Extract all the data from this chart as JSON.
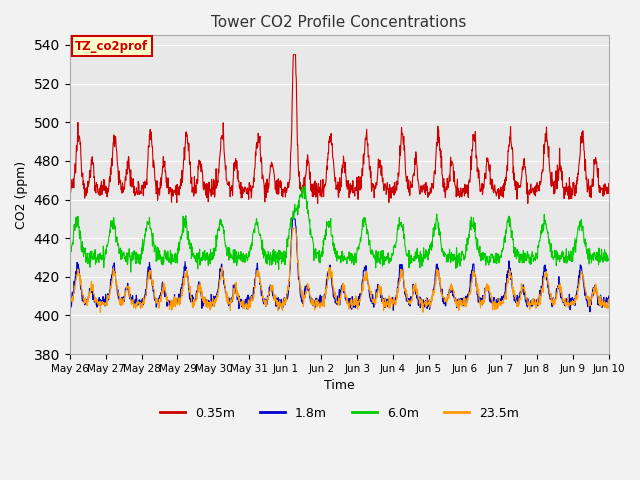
{
  "title": "Tower CO2 Profile Concentrations",
  "xlabel": "Time",
  "ylabel": "CO2 (ppm)",
  "ylim": [
    380,
    545
  ],
  "background_color": "#e8e8e8",
  "fig_background": "#f2f2f2",
  "grid_color": "#ffffff",
  "annotation_text": "TZ_co2prof",
  "annotation_bg": "#ffffcc",
  "annotation_border": "#cc0000",
  "lines": {
    "0.35m": {
      "color": "#cc0000",
      "label": "0.35m"
    },
    "1.8m": {
      "color": "#0000cc",
      "label": "1.8m"
    },
    "6.0m": {
      "color": "#00cc00",
      "label": "6.0m"
    },
    "23.5m": {
      "color": "#ff9900",
      "label": "23.5m"
    }
  },
  "tick_labels": [
    "May 26",
    "May 27",
    "May 28",
    "May 29",
    "May 30",
    "May 31",
    "Jun 1",
    "Jun 2",
    "Jun 3",
    "Jun 4",
    "Jun 5",
    "Jun 6",
    "Jun 7",
    "Jun 8",
    "Jun 9",
    "Jun 10"
  ],
  "tick_positions": [
    0,
    1,
    2,
    3,
    4,
    5,
    6,
    7,
    8,
    9,
    10,
    11,
    12,
    13,
    14,
    15
  ]
}
